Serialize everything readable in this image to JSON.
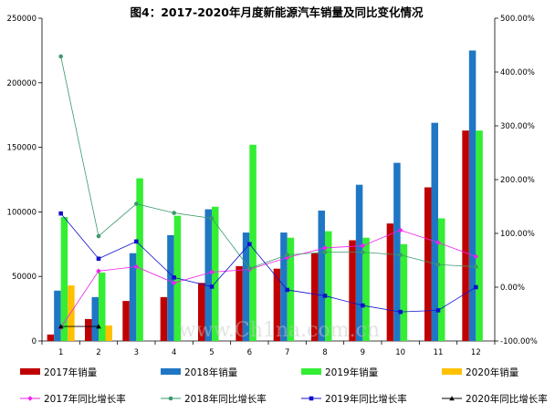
{
  "chart_data": {
    "type": "bar",
    "title": "图4：2017-2020年月度新能源汽车销量及同比变化情况",
    "categories": [
      "1",
      "2",
      "3",
      "4",
      "5",
      "6",
      "7",
      "8",
      "9",
      "10",
      "11",
      "12"
    ],
    "y_left": {
      "min": 0,
      "max": 250000,
      "ticks": [
        "0",
        "50000",
        "100000",
        "150000",
        "200000",
        "250000"
      ]
    },
    "y_right": {
      "min": -100,
      "max": 500,
      "ticks": [
        "-100.00%",
        "0.00%",
        "100.00%",
        "200.00%",
        "300.00%",
        "400.00%",
        "500.00%"
      ]
    },
    "bar_series": [
      {
        "name": "2017年销量",
        "color": "#c00000",
        "values": [
          5000,
          17000,
          31000,
          34000,
          45000,
          58000,
          56000,
          68000,
          78000,
          91000,
          119000,
          163000
        ]
      },
      {
        "name": "2018年销量",
        "color": "#1f77c4",
        "values": [
          39000,
          34000,
          68000,
          82000,
          102000,
          84000,
          84000,
          101000,
          121000,
          138000,
          169000,
          225000
        ]
      },
      {
        "name": "2019年销量",
        "color": "#33ee33",
        "values": [
          96000,
          53000,
          126000,
          97000,
          104000,
          152000,
          80000,
          85000,
          80000,
          75000,
          95000,
          163000
        ]
      },
      {
        "name": "2020年销量",
        "color": "#ffc000",
        "values": [
          43000,
          12000,
          null,
          null,
          null,
          null,
          null,
          null,
          null,
          null,
          null,
          null
        ]
      }
    ],
    "line_series": [
      {
        "name": "2017年同比增长率",
        "color": "#ee22ee",
        "marker": "diamond",
        "values": [
          -75,
          30,
          38,
          8,
          28,
          33,
          55,
          73,
          77,
          106,
          83,
          57
        ]
      },
      {
        "name": "2018年同比增长率",
        "color": "#3a9a6a",
        "marker": "circle",
        "values": [
          429,
          95,
          155,
          138,
          128,
          35,
          60,
          65,
          65,
          60,
          42,
          38
        ]
      },
      {
        "name": "2019年同比增长率",
        "color": "#1010cc",
        "marker": "square",
        "values": [
          137,
          53,
          85,
          18,
          1,
          80,
          -5,
          -16,
          -34,
          -46,
          -43,
          0
        ]
      },
      {
        "name": "2020年同比增长率",
        "color": "#000000",
        "marker": "triangle",
        "values": [
          -73,
          -73,
          null,
          null,
          null,
          null,
          null,
          null,
          null,
          null,
          null,
          null
        ]
      }
    ],
    "watermark": "www.Ch1na.com.cn",
    "legend_position": "bottom",
    "grid": false
  }
}
